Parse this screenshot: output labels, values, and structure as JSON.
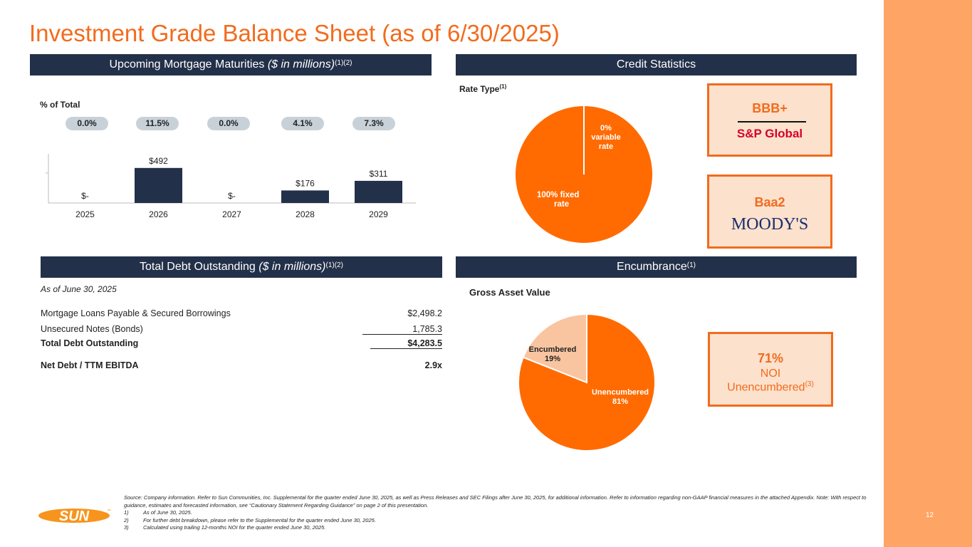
{
  "title": "Investment Grade Balance Sheet (as of 6/30/2025)",
  "page_number": "12",
  "sections": {
    "maturities": {
      "title": "Upcoming Mortgage Maturities",
      "title_italic": "($ in millions)",
      "title_sup": "(1)(2)"
    },
    "credit": {
      "title": "Credit Statistics"
    },
    "debt": {
      "title": "Total Debt Outstanding",
      "title_italic": "($ in millions)",
      "title_sup": "(1)(2)"
    },
    "encumbrance": {
      "title": "Encumbrance",
      "title_sup": "(1)"
    }
  },
  "pct_total_label": "% of Total",
  "pct_pills": [
    "0.0%",
    "11.5%",
    "0.0%",
    "4.1%",
    "7.3%"
  ],
  "chart_data": [
    {
      "type": "bar",
      "title": "Upcoming Mortgage Maturities ($ in millions)",
      "categories": [
        "2025",
        "2026",
        "2027",
        "2028",
        "2029"
      ],
      "values": [
        0,
        492,
        0,
        176,
        311
      ],
      "data_labels": [
        "$-",
        "$492",
        "$-",
        "$176",
        "$311"
      ],
      "ylim": [
        0,
        700
      ],
      "color": "#233049"
    },
    {
      "type": "pie",
      "title": "Rate Type",
      "title_sup": "(1)",
      "labels": [
        "100% fixed rate",
        "0% variable rate"
      ],
      "values": [
        100,
        0
      ],
      "colors": [
        "#FF6B00",
        "#FF6B00"
      ]
    },
    {
      "type": "pie",
      "title": "Gross Asset Value",
      "labels": [
        "Unencumbered 81%",
        "Encumbered 19%"
      ],
      "values": [
        81,
        19
      ],
      "colors": [
        "#FF6B00",
        "#F9C4A0"
      ]
    }
  ],
  "rate_type": {
    "title": "Rate Type",
    "sup": "(1)",
    "fixed_line1": "100% fixed",
    "fixed_line2": "rate",
    "variable_line1": "0%",
    "variable_line2": "variable",
    "variable_line3": "rate"
  },
  "encumbrance_chart": {
    "title": "Gross Asset Value",
    "unenc_line1": "Unencumbered",
    "unenc_line2": "81%",
    "enc_line1": "Encumbered",
    "enc_line2": "19%"
  },
  "ratings": {
    "sp_rating": "BBB+",
    "sp_agency": "S&P Global",
    "moodys_rating": "Baa2",
    "moodys_agency": "MOODY'S"
  },
  "noi": {
    "value": "71%",
    "line1": "NOI",
    "line2": "Unencumbered",
    "sup": "(3)"
  },
  "debt_table": {
    "as_of": "As of June 30, 2025",
    "rows": [
      {
        "label": "Mortgage Loans Payable & Secured Borrowings",
        "value": "$2,498.2"
      },
      {
        "label": "Unsecured Notes (Bonds)",
        "value": "1,785.3"
      },
      {
        "label": "Total Debt Outstanding",
        "value": "$4,283.5"
      },
      {
        "label": "Net Debt / TTM EBITDA",
        "value": "2.9x"
      }
    ]
  },
  "footnotes": {
    "source": "Source: Company information. Refer to Sun Communities, Inc. Supplemental for the quarter ended June 30, 2025, as well as Press Releases and SEC Filings after June 30, 2025, for additional information. Refer to information regarding non-GAAP financial measures in the attached Appendix. Note: With respect to guidance, estimates and forecasted information, see “Cautionary Statement Regarding Guidance” on page 2 of this presentation.",
    "notes": [
      {
        "num": "1)",
        "text": "As of June 30, 2025."
      },
      {
        "num": "2)",
        "text": "For further debt breakdown, please refer to the Supplemental for the quarter ended June 30, 2025."
      },
      {
        "num": "3)",
        "text": "Calculated using trailing 12-months NOI for the quarter ended June 30, 2025."
      }
    ]
  },
  "logo": {
    "text": "SUN",
    "mark": "™"
  },
  "colors": {
    "orange": "#F26B1D",
    "navy": "#233049",
    "band": "#FEA565",
    "light_orange": "#FCE1CD"
  }
}
